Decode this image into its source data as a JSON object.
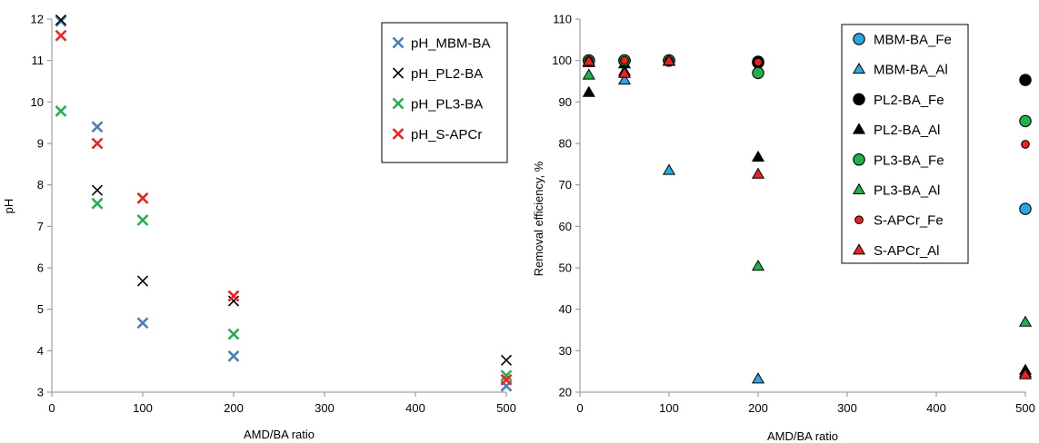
{
  "chart_data": [
    {
      "type": "scatter",
      "title": "",
      "xlabel": "AMD/BA ratio",
      "ylabel": "pH",
      "xlim": [
        0,
        500
      ],
      "ylim": [
        3,
        12
      ],
      "x_ticks": [
        "0",
        "100",
        "200",
        "300",
        "400",
        "500"
      ],
      "x_tick_values": [
        0,
        100,
        200,
        300,
        400,
        500
      ],
      "y_ticks": [
        "3",
        "4",
        "5",
        "6",
        "7",
        "8",
        "9",
        "10",
        "11",
        "12"
      ],
      "y_tick_values": [
        3,
        4,
        5,
        6,
        7,
        8,
        9,
        10,
        11,
        12
      ],
      "grid": false,
      "legend_position": "top-right",
      "series": [
        {
          "name": "pH_MBM-BA",
          "marker": "x",
          "color": "#4a7ebb",
          "x": [
            10,
            50,
            100,
            200,
            500
          ],
          "y": [
            11.95,
            9.4,
            4.67,
            3.87,
            3.15
          ]
        },
        {
          "name": "pH_PL2-BA",
          "marker": "x",
          "color": "#000000",
          "x": [
            10,
            50,
            100,
            200,
            500
          ],
          "y": [
            11.98,
            7.87,
            5.68,
            5.2,
            3.77
          ]
        },
        {
          "name": "pH_PL3-BA",
          "marker": "x",
          "color": "#21b04b",
          "x": [
            10,
            50,
            100,
            200,
            500
          ],
          "y": [
            9.78,
            7.55,
            7.15,
            4.4,
            3.4
          ]
        },
        {
          "name": "pH_S-APCr",
          "marker": "x",
          "color": "#ee2020",
          "x": [
            10,
            50,
            100,
            200,
            500
          ],
          "y": [
            11.6,
            9.0,
            7.68,
            5.32,
            3.3
          ]
        }
      ]
    },
    {
      "type": "scatter",
      "title": "",
      "xlabel": "AMD/BA ratio",
      "ylabel": "Removal efficiency, %",
      "xlim": [
        0,
        500
      ],
      "ylim": [
        20,
        110
      ],
      "x_ticks": [
        "0",
        "100",
        "200",
        "300",
        "400",
        "500"
      ],
      "x_tick_values": [
        0,
        100,
        200,
        300,
        400,
        500
      ],
      "y_ticks": [
        "20",
        "30",
        "40",
        "50",
        "60",
        "70",
        "80",
        "90",
        "100",
        "110"
      ],
      "y_tick_values": [
        20,
        30,
        40,
        50,
        60,
        70,
        80,
        90,
        100,
        110
      ],
      "grid": false,
      "legend_position": "top-right",
      "series": [
        {
          "name": "MBM-BA_Fe",
          "marker": "circle",
          "size": "large",
          "color": "#29a9e1",
          "x": [
            10,
            50,
            100,
            200,
            500
          ],
          "y": [
            100,
            100,
            100,
            99.5,
            64.2
          ]
        },
        {
          "name": "MBM-BA_Al",
          "marker": "triangle",
          "color": "#29a9e1",
          "x": [
            10,
            50,
            100,
            200,
            500
          ],
          "y": [
            99.5,
            95.3,
            73.5,
            23.2,
            24.7
          ]
        },
        {
          "name": "PL2-BA_Fe",
          "marker": "circle",
          "size": "large",
          "color": "#000000",
          "x": [
            10,
            50,
            100,
            200,
            500
          ],
          "y": [
            100,
            100,
            100,
            99.7,
            95.3
          ]
        },
        {
          "name": "PL2-BA_Al",
          "marker": "triangle",
          "color": "#000000",
          "x": [
            10,
            50,
            100,
            200,
            500
          ],
          "y": [
            92.3,
            99.2,
            99.8,
            76.7,
            25.3
          ]
        },
        {
          "name": "PL3-BA_Fe",
          "marker": "circle",
          "size": "large",
          "color": "#21b04b",
          "x": [
            10,
            50,
            100,
            200,
            500
          ],
          "y": [
            100,
            100,
            100,
            97,
            85.4
          ]
        },
        {
          "name": "PL3-BA_Al",
          "marker": "triangle",
          "color": "#21b04b",
          "x": [
            10,
            50,
            100,
            200,
            500
          ],
          "y": [
            96.5,
            97.4,
            99.9,
            50.4,
            36.9
          ]
        },
        {
          "name": "S-APCr_Fe",
          "marker": "circle",
          "size": "small",
          "color": "#ee2020",
          "x": [
            10,
            50,
            100,
            200,
            500
          ],
          "y": [
            100,
            100,
            100,
            99.6,
            79.8
          ]
        },
        {
          "name": "S-APCr_Al",
          "marker": "triangle",
          "color": "#ee2020",
          "x": [
            10,
            50,
            100,
            200,
            500
          ],
          "y": [
            99.8,
            96.9,
            99.9,
            72.6,
            24.2
          ]
        }
      ]
    }
  ]
}
